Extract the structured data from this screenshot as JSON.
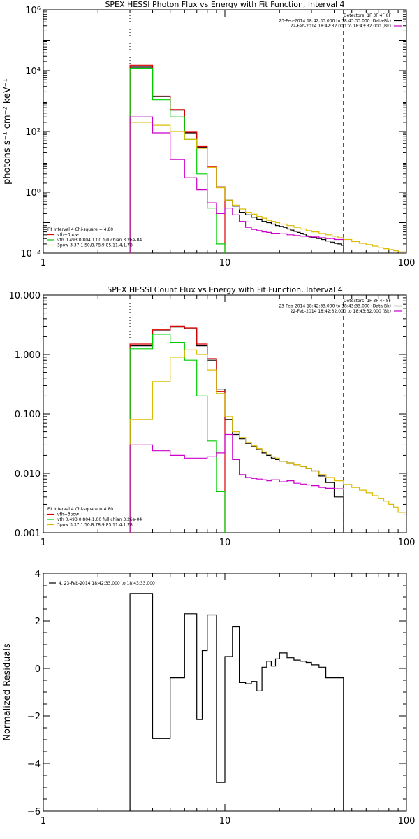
{
  "chart_data": [
    {
      "id": "photon",
      "type": "line",
      "title": "SPEX HESSI Photon Flux vs Energy with Fit Function, Interval 4",
      "ylabel": "photons s⁻¹ cm⁻² keV⁻¹",
      "xlabel": "",
      "xscale": "log",
      "yscale": "log",
      "xlim": [
        1,
        100
      ],
      "ylim": [
        0.01,
        1000000
      ],
      "xticks": [
        {
          "v": 1,
          "label": "1"
        },
        {
          "v": 10,
          "label": "10"
        },
        {
          "v": 100,
          "label": "100"
        }
      ],
      "yticks": [
        {
          "v": 0.01,
          "label": "10⁻²"
        },
        {
          "v": 1,
          "label": "10⁰"
        },
        {
          "v": 100,
          "label": "10²"
        },
        {
          "v": 10000,
          "label": "10⁴"
        },
        {
          "v": 1000000,
          "label": "10⁶"
        }
      ],
      "vlines": [
        {
          "x": 3,
          "style": "dotted"
        },
        {
          "x": 45,
          "style": "dashed"
        }
      ],
      "legend_tr": [
        {
          "text": "Detectors: 1F 3F 4F 8F",
          "color": ""
        },
        {
          "text": "23-Feb-2014 18:42:33.000 to 18:43:33.000 (Data-Bk)",
          "color": "#000000"
        },
        {
          "text": "22-Feb-2014 18:42:32.000 to 18:43:32.000 (Bk)",
          "color": "#cc00cc"
        }
      ],
      "legend_bl": [
        {
          "text": "Fit Interval 4   Chi-square = 4.80",
          "color": ""
        },
        {
          "text": "vth+3pow",
          "color": "#dd0000"
        },
        {
          "text": "vth 0.493,0.804,1.00  full chian 3.26e-04",
          "color": "#00cc00"
        },
        {
          "text": "3pow 3.37,1.50,8.78,9.85,11.4,1.78",
          "color": "#ddbb00"
        }
      ],
      "series": [
        {
          "name": "",
          "color": "#000000",
          "edges": [
            3,
            4,
            5,
            6,
            7,
            8,
            9,
            10,
            11,
            12,
            13,
            14,
            15,
            16,
            17,
            18,
            19,
            20,
            21,
            22,
            23,
            24,
            25,
            26,
            27,
            28,
            29,
            30,
            32,
            34,
            36,
            38,
            40,
            42,
            44,
            45
          ],
          "values": [
            13000,
            1400,
            500,
            90,
            30,
            6.5,
            1.5,
            0.55,
            0.35,
            0.22,
            0.18,
            0.15,
            0.13,
            0.11,
            0.1,
            0.09,
            0.08,
            0.075,
            0.07,
            0.062,
            0.057,
            0.052,
            0.048,
            0.045,
            0.042,
            0.037,
            0.034,
            0.032,
            0.03,
            0.028,
            0.025,
            0.023,
            0.021,
            0.02,
            0.018
          ]
        },
        {
          "name": "vth+3pow",
          "color": "#dd0000",
          "edges": [
            3,
            4,
            5,
            6,
            7,
            8,
            9,
            10
          ],
          "values": [
            15000,
            1450,
            520,
            95,
            32,
            7,
            1.5
          ]
        },
        {
          "name": "vth",
          "color": "#00cc00",
          "edges": [
            3,
            4,
            5,
            6,
            7,
            8,
            9,
            10
          ],
          "values": [
            12000,
            1100,
            300,
            55,
            4,
            0.3,
            0.02
          ]
        },
        {
          "name": "3pow",
          "color": "#ddbb00",
          "edges": [
            3,
            4,
            5,
            6,
            7,
            8,
            9,
            10,
            11,
            12,
            13,
            14,
            15,
            16,
            17,
            18,
            19,
            20,
            22,
            24,
            26,
            28,
            30,
            33,
            36,
            39,
            42,
            45,
            50,
            55,
            60,
            65,
            70,
            75,
            80,
            85,
            90,
            100
          ],
          "values": [
            200,
            160,
            100,
            55,
            28,
            6.5,
            1.4,
            0.55,
            0.38,
            0.28,
            0.22,
            0.19,
            0.16,
            0.14,
            0.12,
            0.11,
            0.1,
            0.09,
            0.08,
            0.07,
            0.062,
            0.055,
            0.05,
            0.044,
            0.04,
            0.036,
            0.032,
            0.028,
            0.024,
            0.021,
            0.019,
            0.017,
            0.015,
            0.014,
            0.013,
            0.012,
            0.011
          ]
        },
        {
          "name": "",
          "color": "#cc00cc",
          "edges": [
            3,
            4,
            5,
            6,
            7,
            8,
            9,
            10,
            11,
            12,
            13,
            14,
            15,
            16,
            17,
            18,
            20,
            22,
            24,
            26,
            28,
            30,
            33,
            36,
            40,
            45
          ],
          "values": [
            300,
            90,
            12,
            3,
            1.2,
            0.45,
            0.2,
            0.3,
            0.18,
            0.11,
            0.07,
            0.06,
            0.055,
            0.05,
            0.048,
            0.045,
            0.043,
            0.04,
            0.038,
            0.036,
            0.035,
            0.034,
            0.032,
            0.03,
            0.028
          ]
        }
      ]
    },
    {
      "id": "count",
      "type": "line",
      "title": "SPEX HESSI Count Flux vs Energy with Fit Function, Interval 4",
      "ylabel": "",
      "xlabel": "",
      "xscale": "log",
      "yscale": "log",
      "xlim": [
        1,
        100
      ],
      "ylim": [
        0.001,
        10
      ],
      "xticks": [
        {
          "v": 1,
          "label": "1"
        },
        {
          "v": 10,
          "label": "10"
        },
        {
          "v": 100,
          "label": "100"
        }
      ],
      "yticks": [
        {
          "v": 0.001,
          "label": "0.001"
        },
        {
          "v": 0.01,
          "label": "0.010"
        },
        {
          "v": 0.1,
          "label": "0.100"
        },
        {
          "v": 1,
          "label": "1.000"
        },
        {
          "v": 10,
          "label": "10.000"
        }
      ],
      "vlines": [
        {
          "x": 3,
          "style": "dotted"
        },
        {
          "x": 45,
          "style": "dashed"
        }
      ],
      "legend_tr": [
        {
          "text": "Detectors: 1F 3F 4F 8F",
          "color": ""
        },
        {
          "text": "23-Feb-2014 18:42:33.000 to 18:43:33.000 (Data-Bk)",
          "color": "#000000"
        },
        {
          "text": "22-Feb-2014 18:42:32.000 to 18:43:32.000 (Bk)",
          "color": "#cc00cc"
        }
      ],
      "legend_bl": [
        {
          "text": "Fit Interval 4   Chi-square = 4.80",
          "color": ""
        },
        {
          "text": "vth+3pow",
          "color": "#dd0000"
        },
        {
          "text": "vth 0.493,0.804,1.00  full chian 3.26e-04",
          "color": "#00cc00"
        },
        {
          "text": "3pow 3.37,1.50,8.78,9.85,11.4,1.78",
          "color": "#ddbb00"
        }
      ],
      "series": [
        {
          "name": "",
          "color": "#000000",
          "edges": [
            3,
            4,
            5,
            6,
            7,
            8,
            9,
            10,
            11,
            12,
            13,
            14,
            15,
            16,
            17,
            18,
            19,
            20,
            22,
            24,
            26,
            28,
            30,
            33,
            36,
            40,
            45
          ],
          "values": [
            1.4,
            2.5,
            2.9,
            2.7,
            1.4,
            0.8,
            0.26,
            0.08,
            0.045,
            0.038,
            0.032,
            0.028,
            0.025,
            0.022,
            0.02,
            0.018,
            0.017,
            0.016,
            0.015,
            0.014,
            0.013,
            0.012,
            0.011,
            0.009,
            0.007,
            0.004
          ]
        },
        {
          "name": "vth+3pow",
          "color": "#dd0000",
          "edges": [
            3,
            4,
            5,
            6,
            7,
            8,
            9,
            10
          ],
          "values": [
            1.5,
            2.6,
            3.0,
            2.8,
            1.5,
            0.85,
            0.24
          ]
        },
        {
          "name": "vth",
          "color": "#00cc00",
          "edges": [
            3,
            4,
            5,
            6,
            7,
            8,
            9,
            10
          ],
          "values": [
            1.25,
            2.2,
            1.6,
            0.8,
            0.2,
            0.035,
            0.005
          ]
        },
        {
          "name": "3pow",
          "color": "#ddbb00",
          "edges": [
            3,
            4,
            5,
            6,
            7,
            8,
            9,
            10,
            11,
            12,
            13,
            14,
            15,
            16,
            17,
            18,
            19,
            20,
            22,
            24,
            26,
            28,
            30,
            33,
            36,
            40,
            45,
            50,
            55,
            60,
            65,
            70,
            75,
            80,
            85,
            90,
            100
          ],
          "values": [
            0.08,
            0.35,
            0.9,
            1.2,
            1.0,
            0.55,
            0.22,
            0.09,
            0.05,
            0.04,
            0.033,
            0.029,
            0.026,
            0.023,
            0.021,
            0.019,
            0.018,
            0.016,
            0.015,
            0.014,
            0.013,
            0.012,
            0.011,
            0.0095,
            0.0085,
            0.0075,
            0.0065,
            0.0058,
            0.0052,
            0.0047,
            0.0042,
            0.0038,
            0.0034,
            0.003,
            0.0027,
            0.0022
          ]
        },
        {
          "name": "",
          "color": "#cc00cc",
          "edges": [
            3,
            4,
            5,
            6,
            7,
            8,
            9,
            10,
            11,
            12,
            13,
            14,
            15,
            16,
            17,
            18,
            20,
            22,
            24,
            26,
            28,
            30,
            33,
            36,
            40,
            45
          ],
          "values": [
            0.03,
            0.024,
            0.02,
            0.018,
            0.018,
            0.019,
            0.022,
            0.045,
            0.017,
            0.0095,
            0.0085,
            0.0082,
            0.008,
            0.0078,
            0.0075,
            0.0078,
            0.0072,
            0.0075,
            0.0068,
            0.0066,
            0.0064,
            0.0062,
            0.0058,
            0.0056,
            0.0055
          ]
        }
      ]
    },
    {
      "id": "resid",
      "type": "line",
      "title": "",
      "ylabel": "Normalized Residuals",
      "xlabel": "",
      "xscale": "log",
      "yscale": "linear",
      "xlim": [
        1,
        100
      ],
      "ylim": [
        -6,
        4
      ],
      "xticks": [
        {
          "v": 1,
          "label": "1"
        },
        {
          "v": 10,
          "label": "10"
        },
        {
          "v": 100,
          "label": "100"
        }
      ],
      "yticks": [
        {
          "v": -6,
          "label": "−6"
        },
        {
          "v": -4,
          "label": "−4"
        },
        {
          "v": -2,
          "label": "−2"
        },
        {
          "v": 0,
          "label": "0"
        },
        {
          "v": 2,
          "label": "2"
        },
        {
          "v": 4,
          "label": "4"
        }
      ],
      "vlines": [],
      "legend_tr": [],
      "legend_bl": [],
      "legend_tl": [
        {
          "text": "4, 23-Feb-2014 18:42:33.000 to 18:43:33.000",
          "color": "#000000"
        }
      ],
      "series": [
        {
          "name": "",
          "color": "#000000",
          "edges": [
            3,
            4,
            5,
            6,
            7,
            7.5,
            8,
            9,
            10,
            11,
            12,
            13,
            14,
            15,
            16,
            17,
            18,
            19,
            20,
            22,
            24,
            26,
            28,
            30,
            33,
            36,
            40,
            45
          ],
          "values": [
            3.15,
            -2.95,
            -0.4,
            2.3,
            -2.15,
            0.75,
            2.25,
            -4.8,
            0.5,
            1.75,
            -0.6,
            -0.65,
            -0.55,
            -0.95,
            0.05,
            0.3,
            0.1,
            0.4,
            0.65,
            0.45,
            0.35,
            0.3,
            0.25,
            0.15,
            0.05,
            -0.4,
            -0.4
          ]
        }
      ]
    }
  ]
}
